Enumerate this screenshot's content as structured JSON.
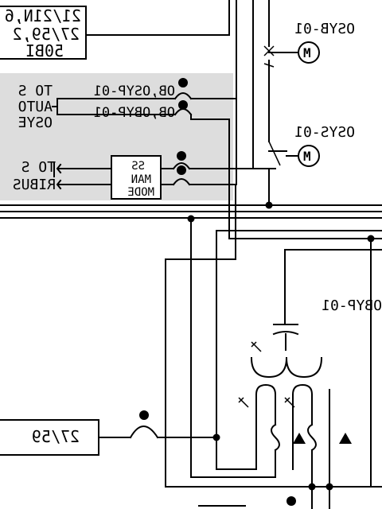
{
  "labels": {
    "top_left_box_line1": "21/21N,6",
    "top_left_box_line2": "27/59,2",
    "top_left_box_line3": "50BI",
    "motor_osyb": "OSYB-01",
    "motor_osys": "OSYS-01",
    "to_left_top": "TO S",
    "auto_left": "AUTO",
    "osye_left": "OSYE",
    "osyp_contact": "OB,OSYP-01",
    "obyp_contact": "OB,OBYP-01",
    "to_s_left": "TO S",
    "ri_bus_left": "RIBUS",
    "ss_box_line1": "SS",
    "ss_box_line2": "MAN",
    "ss_box_line3": "MODE",
    "motor_symbol": "M",
    "obyp_label": "OBYP-01",
    "relay_27_59": "27/59"
  },
  "colors": {
    "panel_fill": "#dddddd",
    "line": "#000000",
    "background": "#ffffff"
  }
}
